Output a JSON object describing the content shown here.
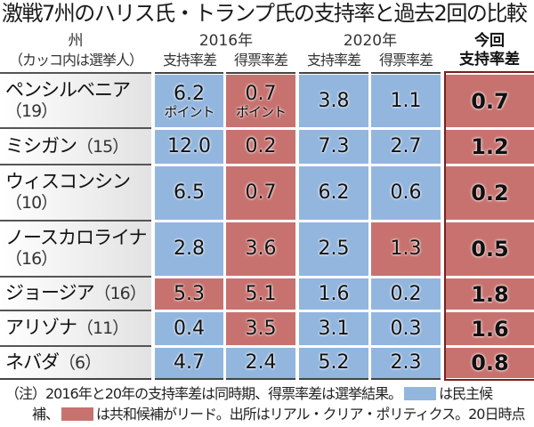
{
  "title": "激戦7州のハリス氏・トランプ氏の支持率と過去2回の比較",
  "header": {
    "state": "州",
    "state_sub": "（カッコ内は選挙人）",
    "y2016": "2016年",
    "y2020": "2020年",
    "current_top": "今回",
    "support": "支持率差",
    "vote": "得票率差",
    "current": "支持率差"
  },
  "unit": "ポイント",
  "colors": {
    "dem": "#93b6df",
    "rep": "#c8726f"
  },
  "chart_data": {
    "type": "table",
    "columns": [
      "州（カッコ内は選挙人）",
      "2016年 支持率差",
      "2016年 得票率差",
      "2020年 支持率差",
      "2020年 得票率差",
      "今回 支持率差"
    ],
    "rows": [
      {
        "state": "ペンシルベニア",
        "ev": "（19）",
        "values": [
          "6.2",
          "0.7",
          "3.8",
          "1.1",
          "0.7"
        ],
        "lead": [
          "dem",
          "rep",
          "dem",
          "dem",
          "rep"
        ],
        "twoLine": true
      },
      {
        "state": "ミシガン",
        "ev": "（15）",
        "values": [
          "12.0",
          "0.2",
          "7.3",
          "2.7",
          "1.2"
        ],
        "lead": [
          "dem",
          "rep",
          "dem",
          "dem",
          "rep"
        ]
      },
      {
        "state": "ウィスコンシン",
        "ev": "（10）",
        "values": [
          "6.5",
          "0.7",
          "6.2",
          "0.6",
          "0.2"
        ],
        "lead": [
          "dem",
          "rep",
          "dem",
          "dem",
          "rep"
        ],
        "twoLine": true
      },
      {
        "state": "ノースカロライナ",
        "ev": "（16）",
        "values": [
          "2.8",
          "3.6",
          "2.5",
          "1.3",
          "0.5"
        ],
        "lead": [
          "dem",
          "rep",
          "dem",
          "rep",
          "rep"
        ],
        "twoLine": true
      },
      {
        "state": "ジョージア",
        "ev": "（16）",
        "values": [
          "5.3",
          "5.1",
          "1.6",
          "0.2",
          "1.8"
        ],
        "lead": [
          "rep",
          "rep",
          "dem",
          "dem",
          "rep"
        ]
      },
      {
        "state": "アリゾナ",
        "ev": "（11）",
        "values": [
          "0.4",
          "3.5",
          "3.1",
          "0.3",
          "1.6"
        ],
        "lead": [
          "dem",
          "rep",
          "dem",
          "dem",
          "rep"
        ]
      },
      {
        "state": "ネバダ",
        "ev": "（6）",
        "values": [
          "4.7",
          "2.4",
          "5.2",
          "2.3",
          "0.8"
        ],
        "lead": [
          "dem",
          "dem",
          "dem",
          "dem",
          "rep"
        ]
      }
    ]
  },
  "note": {
    "part1": "（注）2016年と20年の支持率差は同時期、得票率差は選挙結果。",
    "part2": "は民主候",
    "part3": "補、",
    "part4": "は共和候補がリード。出所はリアル・クリア・ポリティクス。20日時点"
  }
}
